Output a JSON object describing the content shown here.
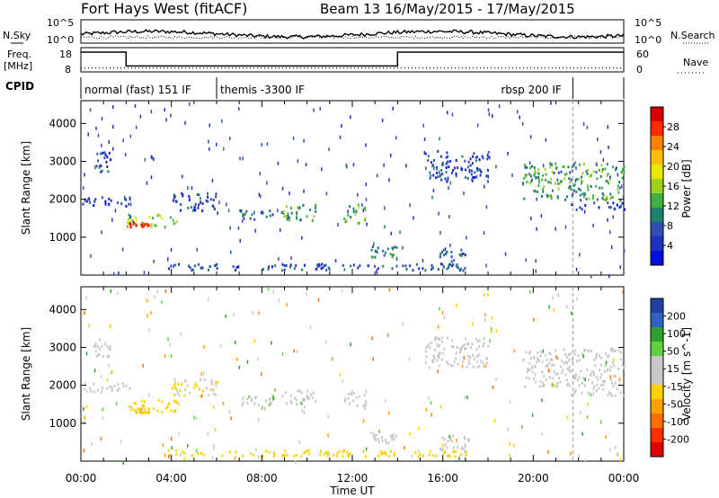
{
  "header": {
    "title": "Fort Hays West (fitACF)",
    "subtitle": "Beam 13 16/May/2015 - 17/May/2015"
  },
  "top_panels": {
    "nsky_label": "N.Sky",
    "nsearch_label": "N.Search",
    "noise_ticks": [
      "10^5",
      "10^0"
    ],
    "freq_label_1": "Freq.",
    "freq_label_2": "[MHz]",
    "freq_ticks": [
      "18",
      "8"
    ],
    "nave_label": "Nave",
    "nave_ticks": [
      "60",
      "0"
    ],
    "cpid_label": "CPID",
    "cpid_segments": [
      {
        "label": "normal (fast) 151 IF",
        "start": 0.0,
        "end": 6.0
      },
      {
        "label": "themis -3300 IF",
        "start": 6.0,
        "end": 21.75
      },
      {
        "label": "rbsp 200 IF",
        "start": 21.75,
        "end": 24.0
      }
    ],
    "freq_steps": [
      {
        "start": 0.0,
        "end": 2.0,
        "value": 18
      },
      {
        "start": 2.0,
        "end": 14.0,
        "value": 11
      },
      {
        "start": 14.0,
        "end": 24.0,
        "value": 18
      }
    ],
    "nave_level": 12
  },
  "x_axis": {
    "label": "Time UT",
    "ticks": [
      "00:00",
      "04:00",
      "08:00",
      "12:00",
      "16:00",
      "20:00",
      "00:00"
    ]
  },
  "power_panel": {
    "ylabel": "Slant Range [km]",
    "colorbar_label": "Power [dB]",
    "colorbar_ticks": [
      "28",
      "24",
      "20",
      "16",
      "12",
      "8",
      "4"
    ],
    "colors": [
      "#d40000",
      "#ff2a00",
      "#ff7f00",
      "#ffbf00",
      "#e8e800",
      "#a0d020",
      "#40b040",
      "#208070",
      "#3050b0",
      "#2030c0",
      "#0010e0"
    ]
  },
  "velocity_panel": {
    "ylabel": "Slant Range [km]",
    "colorbar_label": "Velocity [m s^-1]",
    "colorbar_ticks": [
      "200",
      "100",
      "50",
      "15",
      "-15",
      "-50",
      "-100",
      "-200"
    ],
    "colors": [
      "#2040a0",
      "#3060c0",
      "#30a030",
      "#60d040",
      "#c8c8c8",
      "#c8c8c8",
      "#ffd000",
      "#ffa000",
      "#ff7000",
      "#ff3000",
      "#e00000"
    ]
  },
  "chart_data": {
    "type": "heatmap",
    "x_range_hours": [
      0,
      24
    ],
    "y_range_km": [
      0,
      4600
    ],
    "y_ticks_km": [
      1000,
      2000,
      3000,
      4000
    ],
    "echo_regions": [
      {
        "t0": 0.5,
        "t1": 1.3,
        "r0": 2700,
        "r1": 3300,
        "power": 6,
        "velocity": 0
      },
      {
        "t0": 0.0,
        "t1": 2.2,
        "r0": 1850,
        "r1": 2100,
        "power": 5,
        "velocity": -10
      },
      {
        "t0": 2.0,
        "t1": 4.3,
        "r0": 1300,
        "r1": 1650,
        "power": 16,
        "velocity": -30
      },
      {
        "t0": 2.0,
        "t1": 3.0,
        "r0": 1300,
        "r1": 1420,
        "power": 28,
        "velocity": -60
      },
      {
        "t0": 4.0,
        "t1": 6.0,
        "r0": 1700,
        "r1": 2200,
        "power": 6,
        "velocity": -20
      },
      {
        "t0": 7.0,
        "t1": 8.6,
        "r0": 1500,
        "r1": 1750,
        "power": 8,
        "velocity": 60
      },
      {
        "t0": 8.8,
        "t1": 10.4,
        "r0": 1450,
        "r1": 1900,
        "power": 12,
        "velocity": 40
      },
      {
        "t0": 11.6,
        "t1": 12.6,
        "r0": 1400,
        "r1": 1900,
        "power": 14,
        "velocity": 0
      },
      {
        "t0": 12.8,
        "t1": 14.0,
        "r0": 500,
        "r1": 800,
        "power": 10,
        "velocity": 0
      },
      {
        "t0": 15.2,
        "t1": 18.0,
        "r0": 2500,
        "r1": 3300,
        "power": 6,
        "velocity": 0
      },
      {
        "t0": 15.8,
        "t1": 17.0,
        "r0": 250,
        "r1": 700,
        "power": 8,
        "velocity": 0
      },
      {
        "t0": 19.5,
        "t1": 24.0,
        "r0": 2000,
        "r1": 3000,
        "power": 12,
        "velocity": 0
      },
      {
        "t0": 21.5,
        "t1": 24.0,
        "r0": 1750,
        "r1": 1950,
        "power": 5,
        "velocity": 0
      },
      {
        "t0": 3.8,
        "t1": 17.0,
        "r0": 150,
        "r1": 320,
        "power": 6,
        "velocity": -40
      }
    ]
  }
}
